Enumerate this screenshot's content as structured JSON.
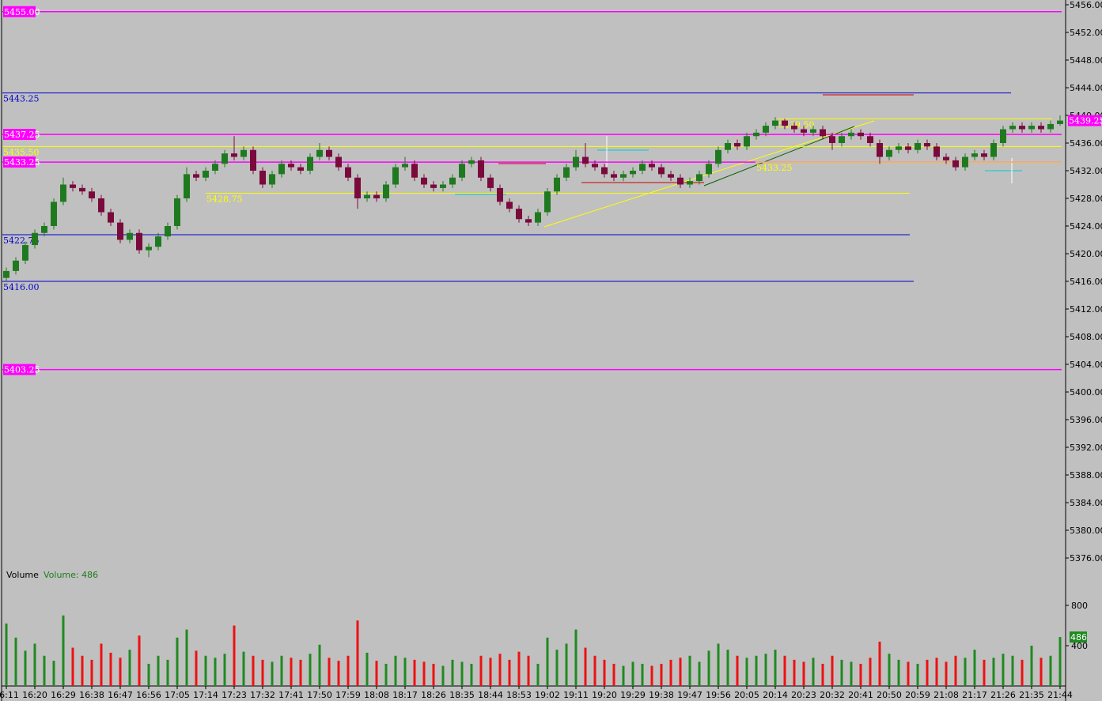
{
  "chart_data": {
    "type": "candlestick",
    "categories": [
      "16:11",
      null,
      null,
      "16:20",
      null,
      null,
      "16:29",
      null,
      null,
      "16:38",
      null,
      null,
      "16:47",
      null,
      null,
      "16:56",
      null,
      null,
      "17:05",
      null,
      null,
      "17:14",
      null,
      null,
      "17:23",
      null,
      null,
      "17:32",
      null,
      null,
      "17:41",
      null,
      null,
      "17:50",
      null,
      null,
      "17:59",
      null,
      null,
      "18:08",
      null,
      null,
      "18:17",
      null,
      null,
      "18:26",
      null,
      null,
      "18:35",
      null,
      null,
      "18:44",
      null,
      null,
      "18:53",
      null,
      null,
      "19:02",
      null,
      null,
      "19:11",
      null,
      null,
      "19:20",
      null,
      null,
      "19:29",
      null,
      null,
      "19:38",
      null,
      null,
      "19:47",
      null,
      null,
      "19:56",
      null,
      null,
      "20:05",
      null,
      null,
      "20:14",
      null,
      null,
      "20:23",
      null,
      null,
      "20:32",
      null,
      null,
      "20:41",
      null,
      null,
      "20:50",
      null,
      null,
      "20:59",
      null,
      null,
      "21:08",
      null,
      null,
      "21:17",
      null,
      null,
      "21:26",
      null,
      null,
      "21:35",
      null,
      null,
      "21:44"
    ],
    "open": [
      5416.5,
      5417.5,
      5419,
      5421.25,
      5423,
      5424,
      5427.5,
      5430,
      5429.5,
      5429,
      5428,
      5426,
      5424.5,
      5422,
      5423,
      5420.5,
      5421,
      5422.5,
      5424,
      5428,
      5431.5,
      5431,
      5432,
      5433,
      5434.5,
      5434,
      5435,
      5432,
      5430,
      5431.5,
      5433,
      5432.5,
      5432,
      5434,
      5435,
      5434,
      5432.5,
      5431,
      5428,
      5428.5,
      5428,
      5430,
      5432.5,
      5433,
      5431,
      5430,
      5429.5,
      5430,
      5431,
      5433,
      5433.5,
      5431,
      5429.5,
      5427.5,
      5426.5,
      5425,
      5424.5,
      5426,
      5429,
      5431,
      5432.5,
      5434,
      5433,
      5432.5,
      5431.5,
      5431,
      5431.5,
      5432,
      5433,
      5432.5,
      5431.5,
      5431,
      5430,
      5430.5,
      5431.5,
      5433,
      5435,
      5436,
      5435.5,
      5437,
      5437.5,
      5438.5,
      5439.25,
      5438.5,
      5438,
      5437.5,
      5438,
      5437,
      5436,
      5437,
      5437.5,
      5437,
      5436,
      5434,
      5435,
      5435.5,
      5435,
      5436,
      5435.5,
      5434,
      5433.5,
      5432.5,
      5434,
      5434.5,
      5434,
      5436,
      5438,
      5438.5,
      5438,
      5438.5,
      5438,
      5438.75
    ],
    "high": [
      5418,
      5419.5,
      5421.75,
      5423.5,
      5424.5,
      5428,
      5431,
      5430.5,
      5430,
      5429.5,
      5428.5,
      5426.5,
      5425,
      5423.5,
      5423.5,
      5421.5,
      5423,
      5424.5,
      5428.5,
      5432.5,
      5432,
      5432.5,
      5433.5,
      5435,
      5437,
      5435.5,
      5435.5,
      5432.5,
      5432,
      5433.5,
      5433.5,
      5433,
      5434.5,
      5436,
      5435.5,
      5434.5,
      5433,
      5431.5,
      5429,
      5429,
      5430.5,
      5433,
      5434,
      5433.5,
      5431.5,
      5430.5,
      5430.5,
      5431.5,
      5433.5,
      5434,
      5434,
      5431.5,
      5430,
      5428,
      5427,
      5425.5,
      5426.5,
      5429.5,
      5431.5,
      5433,
      5435,
      5436,
      5433.5,
      5433,
      5432,
      5432,
      5432.5,
      5433.5,
      5433.5,
      5433,
      5432,
      5431.5,
      5431,
      5432,
      5433.5,
      5435.5,
      5436.5,
      5436.5,
      5437.5,
      5438,
      5439,
      5439.75,
      5439.5,
      5439,
      5438.5,
      5438.5,
      5438.5,
      5437.5,
      5437.5,
      5438,
      5438,
      5437.5,
      5436.5,
      5435.5,
      5436,
      5436,
      5436.5,
      5436.5,
      5436,
      5434.5,
      5434,
      5434.5,
      5435,
      5435,
      5436.5,
      5438.5,
      5439,
      5439,
      5439,
      5439,
      5439.25,
      5440
    ],
    "low": [
      5416,
      5417,
      5418.5,
      5420.75,
      5422.5,
      5423.5,
      5427,
      5429,
      5428.5,
      5427.5,
      5425.5,
      5424,
      5421.5,
      5421.5,
      5420,
      5419.5,
      5420.5,
      5422,
      5423.5,
      5427.5,
      5430.5,
      5430.5,
      5431.5,
      5432.5,
      5433.5,
      5433.5,
      5431.5,
      5429.5,
      5429.5,
      5431,
      5432,
      5431.5,
      5431.5,
      5433.5,
      5433.5,
      5432,
      5430.5,
      5426.5,
      5427.5,
      5427.5,
      5427.5,
      5429.5,
      5432,
      5430.5,
      5429.5,
      5429,
      5429,
      5429.5,
      5430.5,
      5432.5,
      5430.5,
      5429,
      5427,
      5426,
      5424.5,
      5424,
      5424,
      5425.5,
      5428.5,
      5430.5,
      5432,
      5432.5,
      5432,
      5431,
      5430.5,
      5430.5,
      5431,
      5431.5,
      5432,
      5431,
      5430.5,
      5429.5,
      5429.5,
      5430,
      5431,
      5432.5,
      5434.5,
      5435,
      5435,
      5436.5,
      5437,
      5438,
      5438,
      5437.5,
      5437,
      5437,
      5436.5,
      5435,
      5435.5,
      5436.5,
      5436.5,
      5435.5,
      5433,
      5433.5,
      5434.5,
      5434.5,
      5434.5,
      5435,
      5433.5,
      5433,
      5432,
      5432,
      5433.5,
      5433.5,
      5433.5,
      5435.5,
      5437.5,
      5437.5,
      5437.5,
      5437.5,
      5437.5,
      5438.5
    ],
    "close": [
      5417.5,
      5419,
      5421.25,
      5423,
      5424,
      5427.5,
      5430,
      5429.5,
      5429,
      5428,
      5426,
      5424.5,
      5422,
      5423,
      5420.5,
      5421,
      5422.5,
      5424,
      5428,
      5431.5,
      5431,
      5432,
      5433,
      5434.5,
      5434,
      5435,
      5432,
      5430,
      5431.5,
      5433,
      5432.5,
      5432,
      5434,
      5435,
      5434,
      5432.5,
      5431,
      5428,
      5428.5,
      5428,
      5430,
      5432.5,
      5433,
      5431,
      5430,
      5429.5,
      5430,
      5431,
      5433,
      5433.5,
      5431,
      5429.5,
      5427.5,
      5426.5,
      5425,
      5424.5,
      5426,
      5429,
      5431,
      5432.5,
      5434,
      5433,
      5432.5,
      5431.5,
      5431,
      5431.5,
      5432,
      5433,
      5432.5,
      5431.5,
      5431,
      5430,
      5430.5,
      5431.5,
      5433,
      5435,
      5436,
      5435.5,
      5437,
      5437.5,
      5438.5,
      5439.25,
      5438.5,
      5438,
      5437.5,
      5438,
      5437,
      5436,
      5437,
      5437.5,
      5437,
      5436,
      5434,
      5435,
      5435.5,
      5435,
      5436,
      5435.5,
      5434,
      5433.5,
      5432.5,
      5434,
      5434.5,
      5434,
      5436,
      5438,
      5438.5,
      5438,
      5438.5,
      5438,
      5438.75,
      5439.25
    ],
    "up_color": "#1f7a1f",
    "down_color": "#7a0a3c",
    "ylim": [
      5375,
      5456
    ],
    "yticks": [
      {
        "value": 5456,
        "label": "5456.00"
      },
      {
        "value": 5452,
        "label": "5452.00"
      },
      {
        "value": 5448,
        "label": "5448.00"
      },
      {
        "value": 5444,
        "label": "5444.00"
      },
      {
        "value": 5440,
        "label": "5440.00"
      },
      {
        "value": 5436,
        "label": "5436.00"
      },
      {
        "value": 5432,
        "label": "5432.00"
      },
      {
        "value": 5428,
        "label": "5428.00"
      },
      {
        "value": 5424,
        "label": "5424.00"
      },
      {
        "value": 5420,
        "label": "5420.00"
      },
      {
        "value": 5416,
        "label": "5416.00"
      },
      {
        "value": 5412,
        "label": "5412.00"
      },
      {
        "value": 5408,
        "label": "5408.00"
      },
      {
        "value": 5404,
        "label": "5404.00"
      },
      {
        "value": 5400,
        "label": "5400.00"
      },
      {
        "value": 5396,
        "label": "5396.00"
      },
      {
        "value": 5392,
        "label": "5392.00"
      },
      {
        "value": 5388,
        "label": "5388.00"
      },
      {
        "value": 5384,
        "label": "5384.00"
      },
      {
        "value": 5380,
        "label": "5380.00"
      },
      {
        "value": 5376,
        "label": "5376.00"
      }
    ],
    "levels": [
      {
        "value": 5455,
        "label": "5455.00",
        "color": "#ff00ff",
        "style": "box"
      },
      {
        "value": 5443.25,
        "label": "5443.25",
        "color": "#0000cc",
        "style": "text"
      },
      {
        "value": 5437.25,
        "label": "5437.25",
        "color": "#ff00ff",
        "style": "box"
      },
      {
        "value": 5435.5,
        "label": "5435.50",
        "color": "#ffff00",
        "style": "text"
      },
      {
        "value": 5433.25,
        "label": "5433.25",
        "color": "#ff00ff",
        "style": "box"
      },
      {
        "value": 5428.75,
        "label": "5428.75",
        "color": "#ffff00",
        "style": "text"
      },
      {
        "value": 5433.25,
        "label": "5433.25",
        "color": "#ffff00",
        "style": "text"
      },
      {
        "value": 5439.5,
        "label": "5439.50",
        "color": "#ffff00",
        "style": "text"
      },
      {
        "value": 5422.75,
        "label": "5422.75",
        "color": "#0000cc",
        "style": "text"
      },
      {
        "value": 5416,
        "label": "5416.00",
        "color": "#0000cc",
        "style": "text"
      },
      {
        "value": 5403.25,
        "label": "5403.25",
        "color": "#ff00ff",
        "style": "box"
      }
    ],
    "volume": {
      "title": "Volume",
      "readout": "Volume: 486",
      "values": [
        620,
        480,
        350,
        420,
        300,
        250,
        700,
        380,
        300,
        260,
        420,
        330,
        280,
        360,
        500,
        220,
        300,
        260,
        480,
        560,
        350,
        300,
        280,
        320,
        600,
        340,
        300,
        260,
        240,
        300,
        280,
        260,
        320,
        410,
        280,
        250,
        300,
        650,
        330,
        250,
        220,
        300,
        280,
        260,
        240,
        220,
        200,
        260,
        240,
        220,
        300,
        280,
        320,
        260,
        340,
        300,
        220,
        480,
        360,
        420,
        560,
        380,
        300,
        260,
        220,
        200,
        240,
        220,
        200,
        220,
        260,
        280,
        300,
        240,
        350,
        420,
        360,
        300,
        280,
        300,
        320,
        360,
        300,
        260,
        240,
        280,
        220,
        300,
        260,
        240,
        220,
        280,
        440,
        320,
        260,
        240,
        220,
        260,
        280,
        240,
        300,
        280,
        360,
        260,
        280,
        320,
        300,
        260,
        400,
        280,
        300,
        486
      ],
      "up_color": "#1f8a1f",
      "down_color": "#ee1111",
      "ylim": [
        0,
        1000
      ],
      "yticks": [
        800,
        400
      ]
    }
  }
}
